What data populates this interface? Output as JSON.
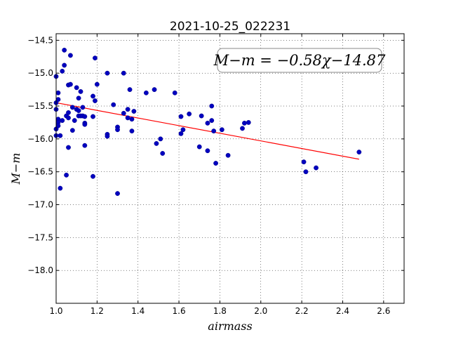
{
  "chart_data": {
    "type": "scatter",
    "title": "2021-10-25_022231",
    "xlabel": "airmass",
    "ylabel": "M−m",
    "xlim": [
      1.0,
      2.7
    ],
    "ylim": [
      -18.5,
      -14.4
    ],
    "y_inverted": true,
    "grid": true,
    "x_ticks": [
      1.0,
      1.2,
      1.4,
      1.6,
      1.8,
      2.0,
      2.2,
      2.4,
      2.6
    ],
    "x_tick_labels": [
      "1.0",
      "1.2",
      "1.4",
      "1.6",
      "1.8",
      "2.0",
      "2.2",
      "2.4",
      "2.6"
    ],
    "y_ticks": [
      -14.5,
      -15.0,
      -15.5,
      -16.0,
      -16.5,
      -17.0,
      -17.5,
      -18.0
    ],
    "y_tick_labels": [
      "−14.5",
      "−15.0",
      "−15.5",
      "−16.0",
      "−16.5",
      "−17.0",
      "−17.5",
      "−18.0"
    ],
    "annotation": "M−m = −0.58χ−14.87",
    "marker_color": "#0000bf",
    "fit_color": "#ff0000",
    "fit": {
      "slope": -0.58,
      "intercept": -14.87,
      "x_range": [
        1.0,
        2.48
      ]
    },
    "series": [
      {
        "x": [
          1.0,
          1.0,
          1.0,
          1.0,
          1.0,
          1.01,
          1.01,
          1.01,
          1.01,
          1.01,
          1.02,
          1.02,
          1.03,
          1.03,
          1.04,
          1.04,
          1.05,
          1.05,
          1.06,
          1.06,
          1.06,
          1.06,
          1.07,
          1.07,
          1.08,
          1.08,
          1.09,
          1.1,
          1.1,
          1.11,
          1.11,
          1.11,
          1.12,
          1.12,
          1.13,
          1.13,
          1.14,
          1.14,
          1.14,
          1.14,
          1.18,
          1.18,
          1.18,
          1.19,
          1.19,
          1.2,
          1.25,
          1.25,
          1.25,
          1.28,
          1.3,
          1.3,
          1.3,
          1.33,
          1.33,
          1.35,
          1.35,
          1.36,
          1.37,
          1.37,
          1.38,
          1.44,
          1.48,
          1.49,
          1.51,
          1.52,
          1.58,
          1.61,
          1.61,
          1.62,
          1.65,
          1.7,
          1.71,
          1.74,
          1.74,
          1.76,
          1.76,
          1.77,
          1.78,
          1.81,
          1.84,
          1.91,
          1.92,
          1.94,
          2.21,
          2.22,
          2.27,
          2.48
        ],
        "y": [
          -15.05,
          -15.45,
          -15.55,
          -15.85,
          -15.95,
          -15.3,
          -15.4,
          -15.7,
          -15.75,
          -15.8,
          -16.75,
          -15.95,
          -15.72,
          -14.97,
          -14.65,
          -14.88,
          -15.65,
          -16.55,
          -15.18,
          -15.6,
          -15.68,
          -16.13,
          -15.17,
          -14.73,
          -15.87,
          -15.52,
          -15.72,
          -15.22,
          -15.55,
          -15.38,
          -15.57,
          -15.65,
          -15.28,
          -15.65,
          -15.52,
          -15.65,
          -15.76,
          -16.1,
          -15.78,
          -15.66,
          -15.35,
          -16.57,
          -15.66,
          -14.77,
          -15.42,
          -15.17,
          -15.0,
          -15.93,
          -15.96,
          -15.48,
          -15.82,
          -15.86,
          -16.83,
          -15.0,
          -15.61,
          -15.55,
          -15.68,
          -15.25,
          -15.7,
          -15.88,
          -15.58,
          -15.3,
          -15.25,
          -16.07,
          -16.0,
          -16.22,
          -15.3,
          -15.66,
          -15.92,
          -15.86,
          -15.62,
          -16.12,
          -15.65,
          -16.18,
          -15.76,
          -15.5,
          -15.72,
          -15.88,
          -16.37,
          -15.86,
          -16.25,
          -15.84,
          -15.76,
          -15.75,
          -16.35,
          -16.5,
          -16.44,
          -16.2
        ]
      }
    ]
  }
}
